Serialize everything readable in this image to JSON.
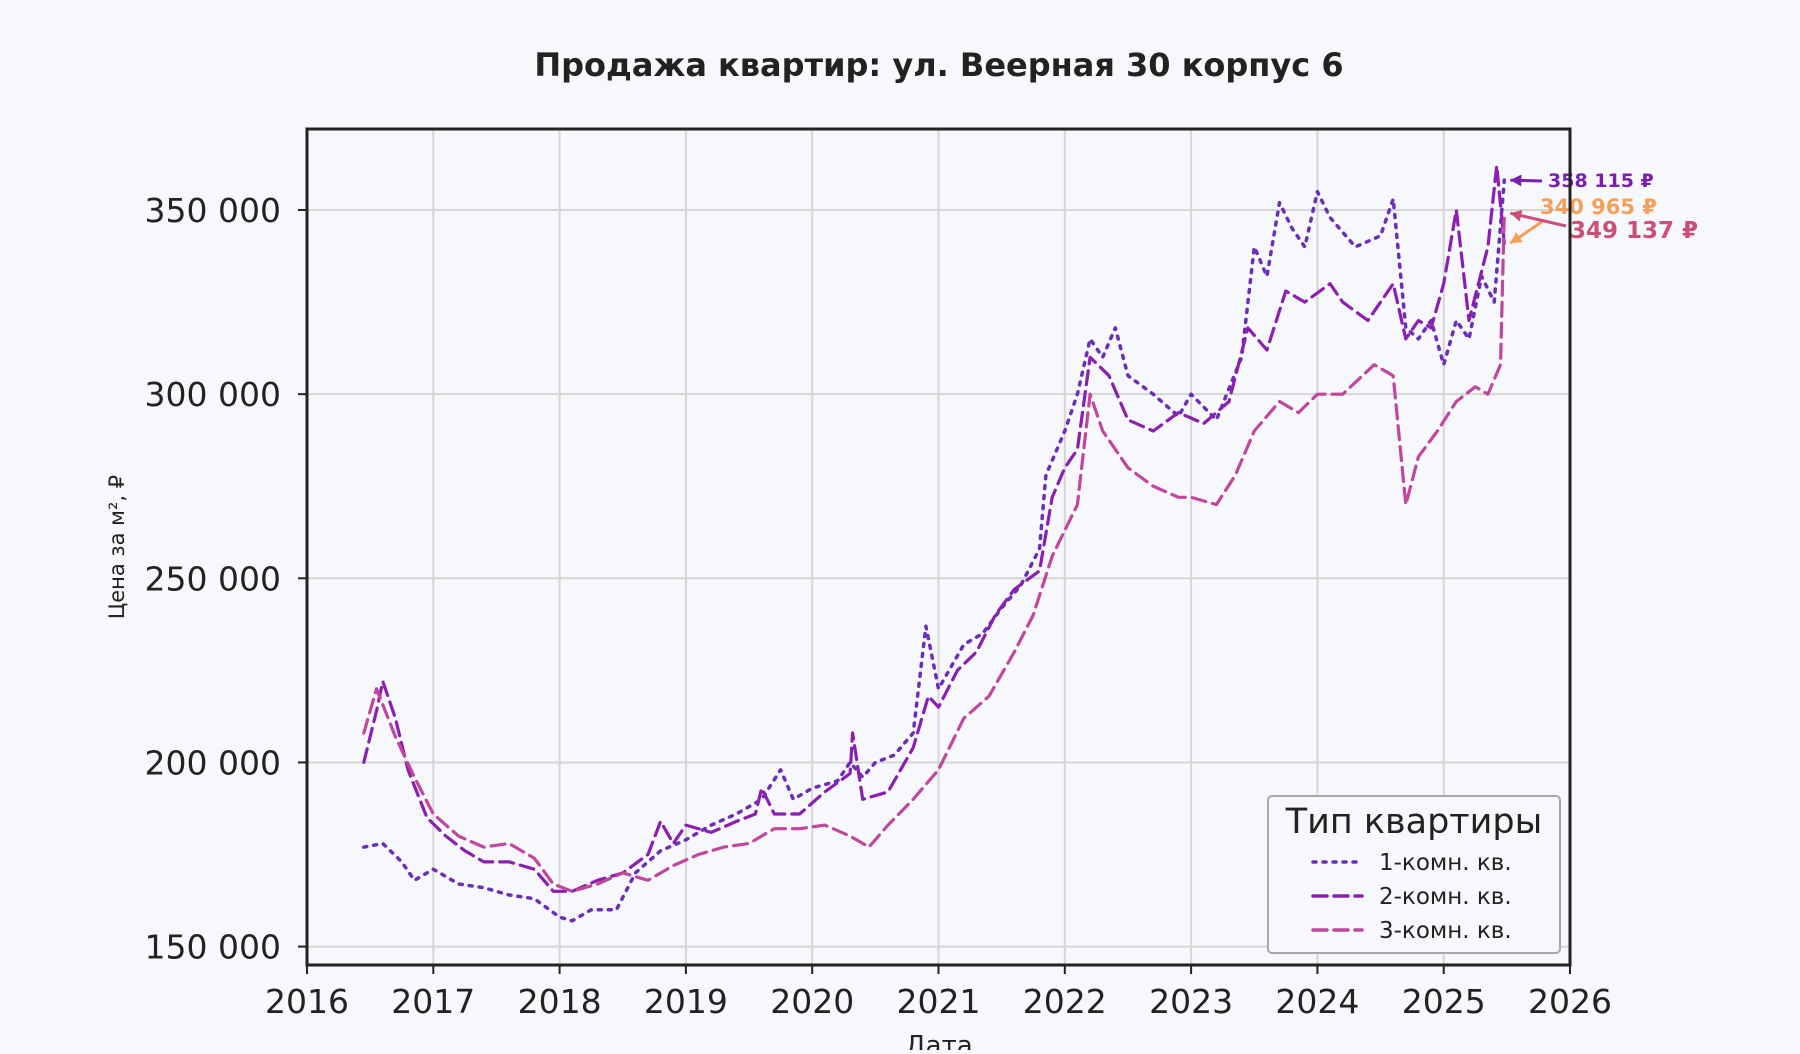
{
  "chart_data": {
    "type": "line",
    "title": "Продажа квартир: ул. Веерная 30 корпус 6",
    "xlabel": "Дата",
    "ylabel": "Цена за м², ₽",
    "xlim": [
      2016,
      2026
    ],
    "ylim": [
      145000,
      372000
    ],
    "x_ticks": [
      2016,
      2017,
      2018,
      2019,
      2020,
      2021,
      2022,
      2023,
      2024,
      2025,
      2026
    ],
    "x_tick_labels": [
      "2016",
      "2017",
      "2018",
      "2019",
      "2020",
      "2021",
      "2022",
      "2023",
      "2024",
      "2025",
      "2026"
    ],
    "y_ticks": [
      150000,
      200000,
      250000,
      300000,
      350000
    ],
    "y_tick_labels": [
      "150 000",
      "200 000",
      "250 000",
      "300 000",
      "350 000"
    ],
    "grid": true,
    "legend": {
      "title": "Тип квартиры",
      "placement": "bottom-right"
    },
    "series": [
      {
        "name": "1-комн. кв.",
        "color": "#6a2fb8",
        "dash": "dotted",
        "last_value_label": "358 115 ₽",
        "label_color": "#7a1fb0",
        "points": [
          [
            2016.45,
            177000
          ],
          [
            2016.6,
            178000
          ],
          [
            2016.75,
            173000
          ],
          [
            2016.85,
            168000
          ],
          [
            2017.0,
            171000
          ],
          [
            2017.2,
            167000
          ],
          [
            2017.4,
            166000
          ],
          [
            2017.6,
            164000
          ],
          [
            2017.8,
            163000
          ],
          [
            2018.0,
            158000
          ],
          [
            2018.1,
            157000
          ],
          [
            2018.25,
            160000
          ],
          [
            2018.45,
            160000
          ],
          [
            2018.6,
            170000
          ],
          [
            2018.8,
            176000
          ],
          [
            2019.0,
            179000
          ],
          [
            2019.2,
            183000
          ],
          [
            2019.4,
            186000
          ],
          [
            2019.6,
            190000
          ],
          [
            2019.75,
            198000
          ],
          [
            2019.85,
            190000
          ],
          [
            2020.0,
            193000
          ],
          [
            2020.2,
            195000
          ],
          [
            2020.3,
            200000
          ],
          [
            2020.4,
            196000
          ],
          [
            2020.5,
            200000
          ],
          [
            2020.65,
            202000
          ],
          [
            2020.8,
            208000
          ],
          [
            2020.9,
            237000
          ],
          [
            2021.0,
            220000
          ],
          [
            2021.2,
            232000
          ],
          [
            2021.35,
            235000
          ],
          [
            2021.5,
            242000
          ],
          [
            2021.65,
            248000
          ],
          [
            2021.8,
            258000
          ],
          [
            2021.85,
            278000
          ],
          [
            2022.0,
            290000
          ],
          [
            2022.1,
            300000
          ],
          [
            2022.2,
            315000
          ],
          [
            2022.3,
            310000
          ],
          [
            2022.4,
            318000
          ],
          [
            2022.5,
            305000
          ],
          [
            2022.7,
            300000
          ],
          [
            2022.9,
            294000
          ],
          [
            2023.0,
            300000
          ],
          [
            2023.2,
            293000
          ],
          [
            2023.4,
            310000
          ],
          [
            2023.5,
            340000
          ],
          [
            2023.6,
            332000
          ],
          [
            2023.7,
            352000
          ],
          [
            2023.8,
            345000
          ],
          [
            2023.9,
            340000
          ],
          [
            2024.0,
            355000
          ],
          [
            2024.1,
            348000
          ],
          [
            2024.3,
            340000
          ],
          [
            2024.5,
            343000
          ],
          [
            2024.6,
            353000
          ],
          [
            2024.7,
            318000
          ],
          [
            2024.8,
            315000
          ],
          [
            2024.9,
            320000
          ],
          [
            2025.0,
            308000
          ],
          [
            2025.1,
            320000
          ],
          [
            2025.2,
            315000
          ],
          [
            2025.3,
            332000
          ],
          [
            2025.4,
            325000
          ],
          [
            2025.48,
            358115
          ]
        ]
      },
      {
        "name": "2-комн. кв.",
        "color": "#8a1fb0",
        "dash": "dashed",
        "last_value_label": "340 965 ₽",
        "label_color": "#f5a05a",
        "points": [
          [
            2016.45,
            200000
          ],
          [
            2016.55,
            214000
          ],
          [
            2016.6,
            222000
          ],
          [
            2016.7,
            212000
          ],
          [
            2016.8,
            198000
          ],
          [
            2016.95,
            185000
          ],
          [
            2017.1,
            180000
          ],
          [
            2017.25,
            176000
          ],
          [
            2017.4,
            173000
          ],
          [
            2017.6,
            173000
          ],
          [
            2017.8,
            171000
          ],
          [
            2017.95,
            165000
          ],
          [
            2018.1,
            165000
          ],
          [
            2018.3,
            168000
          ],
          [
            2018.5,
            170000
          ],
          [
            2018.7,
            175000
          ],
          [
            2018.8,
            184000
          ],
          [
            2018.9,
            178000
          ],
          [
            2019.0,
            183000
          ],
          [
            2019.2,
            181000
          ],
          [
            2019.4,
            184000
          ],
          [
            2019.55,
            186000
          ],
          [
            2019.6,
            193000
          ],
          [
            2019.7,
            186000
          ],
          [
            2019.9,
            186000
          ],
          [
            2020.1,
            192000
          ],
          [
            2020.3,
            197000
          ],
          [
            2020.32,
            208000
          ],
          [
            2020.4,
            190000
          ],
          [
            2020.6,
            192000
          ],
          [
            2020.8,
            204000
          ],
          [
            2020.92,
            218000
          ],
          [
            2021.0,
            215000
          ],
          [
            2021.15,
            225000
          ],
          [
            2021.3,
            230000
          ],
          [
            2021.45,
            240000
          ],
          [
            2021.6,
            247000
          ],
          [
            2021.8,
            252000
          ],
          [
            2021.9,
            272000
          ],
          [
            2022.0,
            280000
          ],
          [
            2022.1,
            285000
          ],
          [
            2022.2,
            310000
          ],
          [
            2022.35,
            305000
          ],
          [
            2022.5,
            293000
          ],
          [
            2022.7,
            290000
          ],
          [
            2022.9,
            295000
          ],
          [
            2023.1,
            292000
          ],
          [
            2023.3,
            298000
          ],
          [
            2023.45,
            318000
          ],
          [
            2023.6,
            312000
          ],
          [
            2023.75,
            328000
          ],
          [
            2023.9,
            325000
          ],
          [
            2024.1,
            330000
          ],
          [
            2024.2,
            325000
          ],
          [
            2024.4,
            320000
          ],
          [
            2024.6,
            330000
          ],
          [
            2024.7,
            315000
          ],
          [
            2024.8,
            320000
          ],
          [
            2024.9,
            318000
          ],
          [
            2025.0,
            330000
          ],
          [
            2025.1,
            350000
          ],
          [
            2025.2,
            320000
          ],
          [
            2025.35,
            340000
          ],
          [
            2025.42,
            362000
          ],
          [
            2025.48,
            340965
          ]
        ]
      },
      {
        "name": "3-комн. кв.",
        "color": "#c0469e",
        "dash": "dashed",
        "last_value_label": "349 137 ₽",
        "label_color": "#cc4f7a",
        "points": [
          [
            2016.45,
            208000
          ],
          [
            2016.55,
            220000
          ],
          [
            2016.7,
            207000
          ],
          [
            2016.85,
            196000
          ],
          [
            2017.0,
            186000
          ],
          [
            2017.2,
            180000
          ],
          [
            2017.4,
            177000
          ],
          [
            2017.6,
            178000
          ],
          [
            2017.8,
            174000
          ],
          [
            2017.95,
            167000
          ],
          [
            2018.1,
            165000
          ],
          [
            2018.3,
            167000
          ],
          [
            2018.5,
            170000
          ],
          [
            2018.7,
            168000
          ],
          [
            2018.9,
            172000
          ],
          [
            2019.1,
            175000
          ],
          [
            2019.3,
            177000
          ],
          [
            2019.5,
            178000
          ],
          [
            2019.7,
            182000
          ],
          [
            2019.9,
            182000
          ],
          [
            2020.1,
            183000
          ],
          [
            2020.3,
            180000
          ],
          [
            2020.45,
            177000
          ],
          [
            2020.6,
            183000
          ],
          [
            2020.8,
            190000
          ],
          [
            2021.0,
            198000
          ],
          [
            2021.2,
            212000
          ],
          [
            2021.4,
            218000
          ],
          [
            2021.6,
            230000
          ],
          [
            2021.75,
            240000
          ],
          [
            2021.9,
            256000
          ],
          [
            2022.1,
            270000
          ],
          [
            2022.2,
            300000
          ],
          [
            2022.3,
            290000
          ],
          [
            2022.5,
            280000
          ],
          [
            2022.7,
            275000
          ],
          [
            2022.9,
            272000
          ],
          [
            2023.0,
            272000
          ],
          [
            2023.2,
            270000
          ],
          [
            2023.35,
            278000
          ],
          [
            2023.5,
            290000
          ],
          [
            2023.7,
            298000
          ],
          [
            2023.85,
            295000
          ],
          [
            2024.0,
            300000
          ],
          [
            2024.2,
            300000
          ],
          [
            2024.45,
            308000
          ],
          [
            2024.6,
            305000
          ],
          [
            2024.7,
            270000
          ],
          [
            2024.8,
            283000
          ],
          [
            2024.95,
            290000
          ],
          [
            2025.1,
            298000
          ],
          [
            2025.25,
            302000
          ],
          [
            2025.35,
            300000
          ],
          [
            2025.45,
            308000
          ],
          [
            2025.48,
            349137
          ]
        ]
      }
    ]
  }
}
